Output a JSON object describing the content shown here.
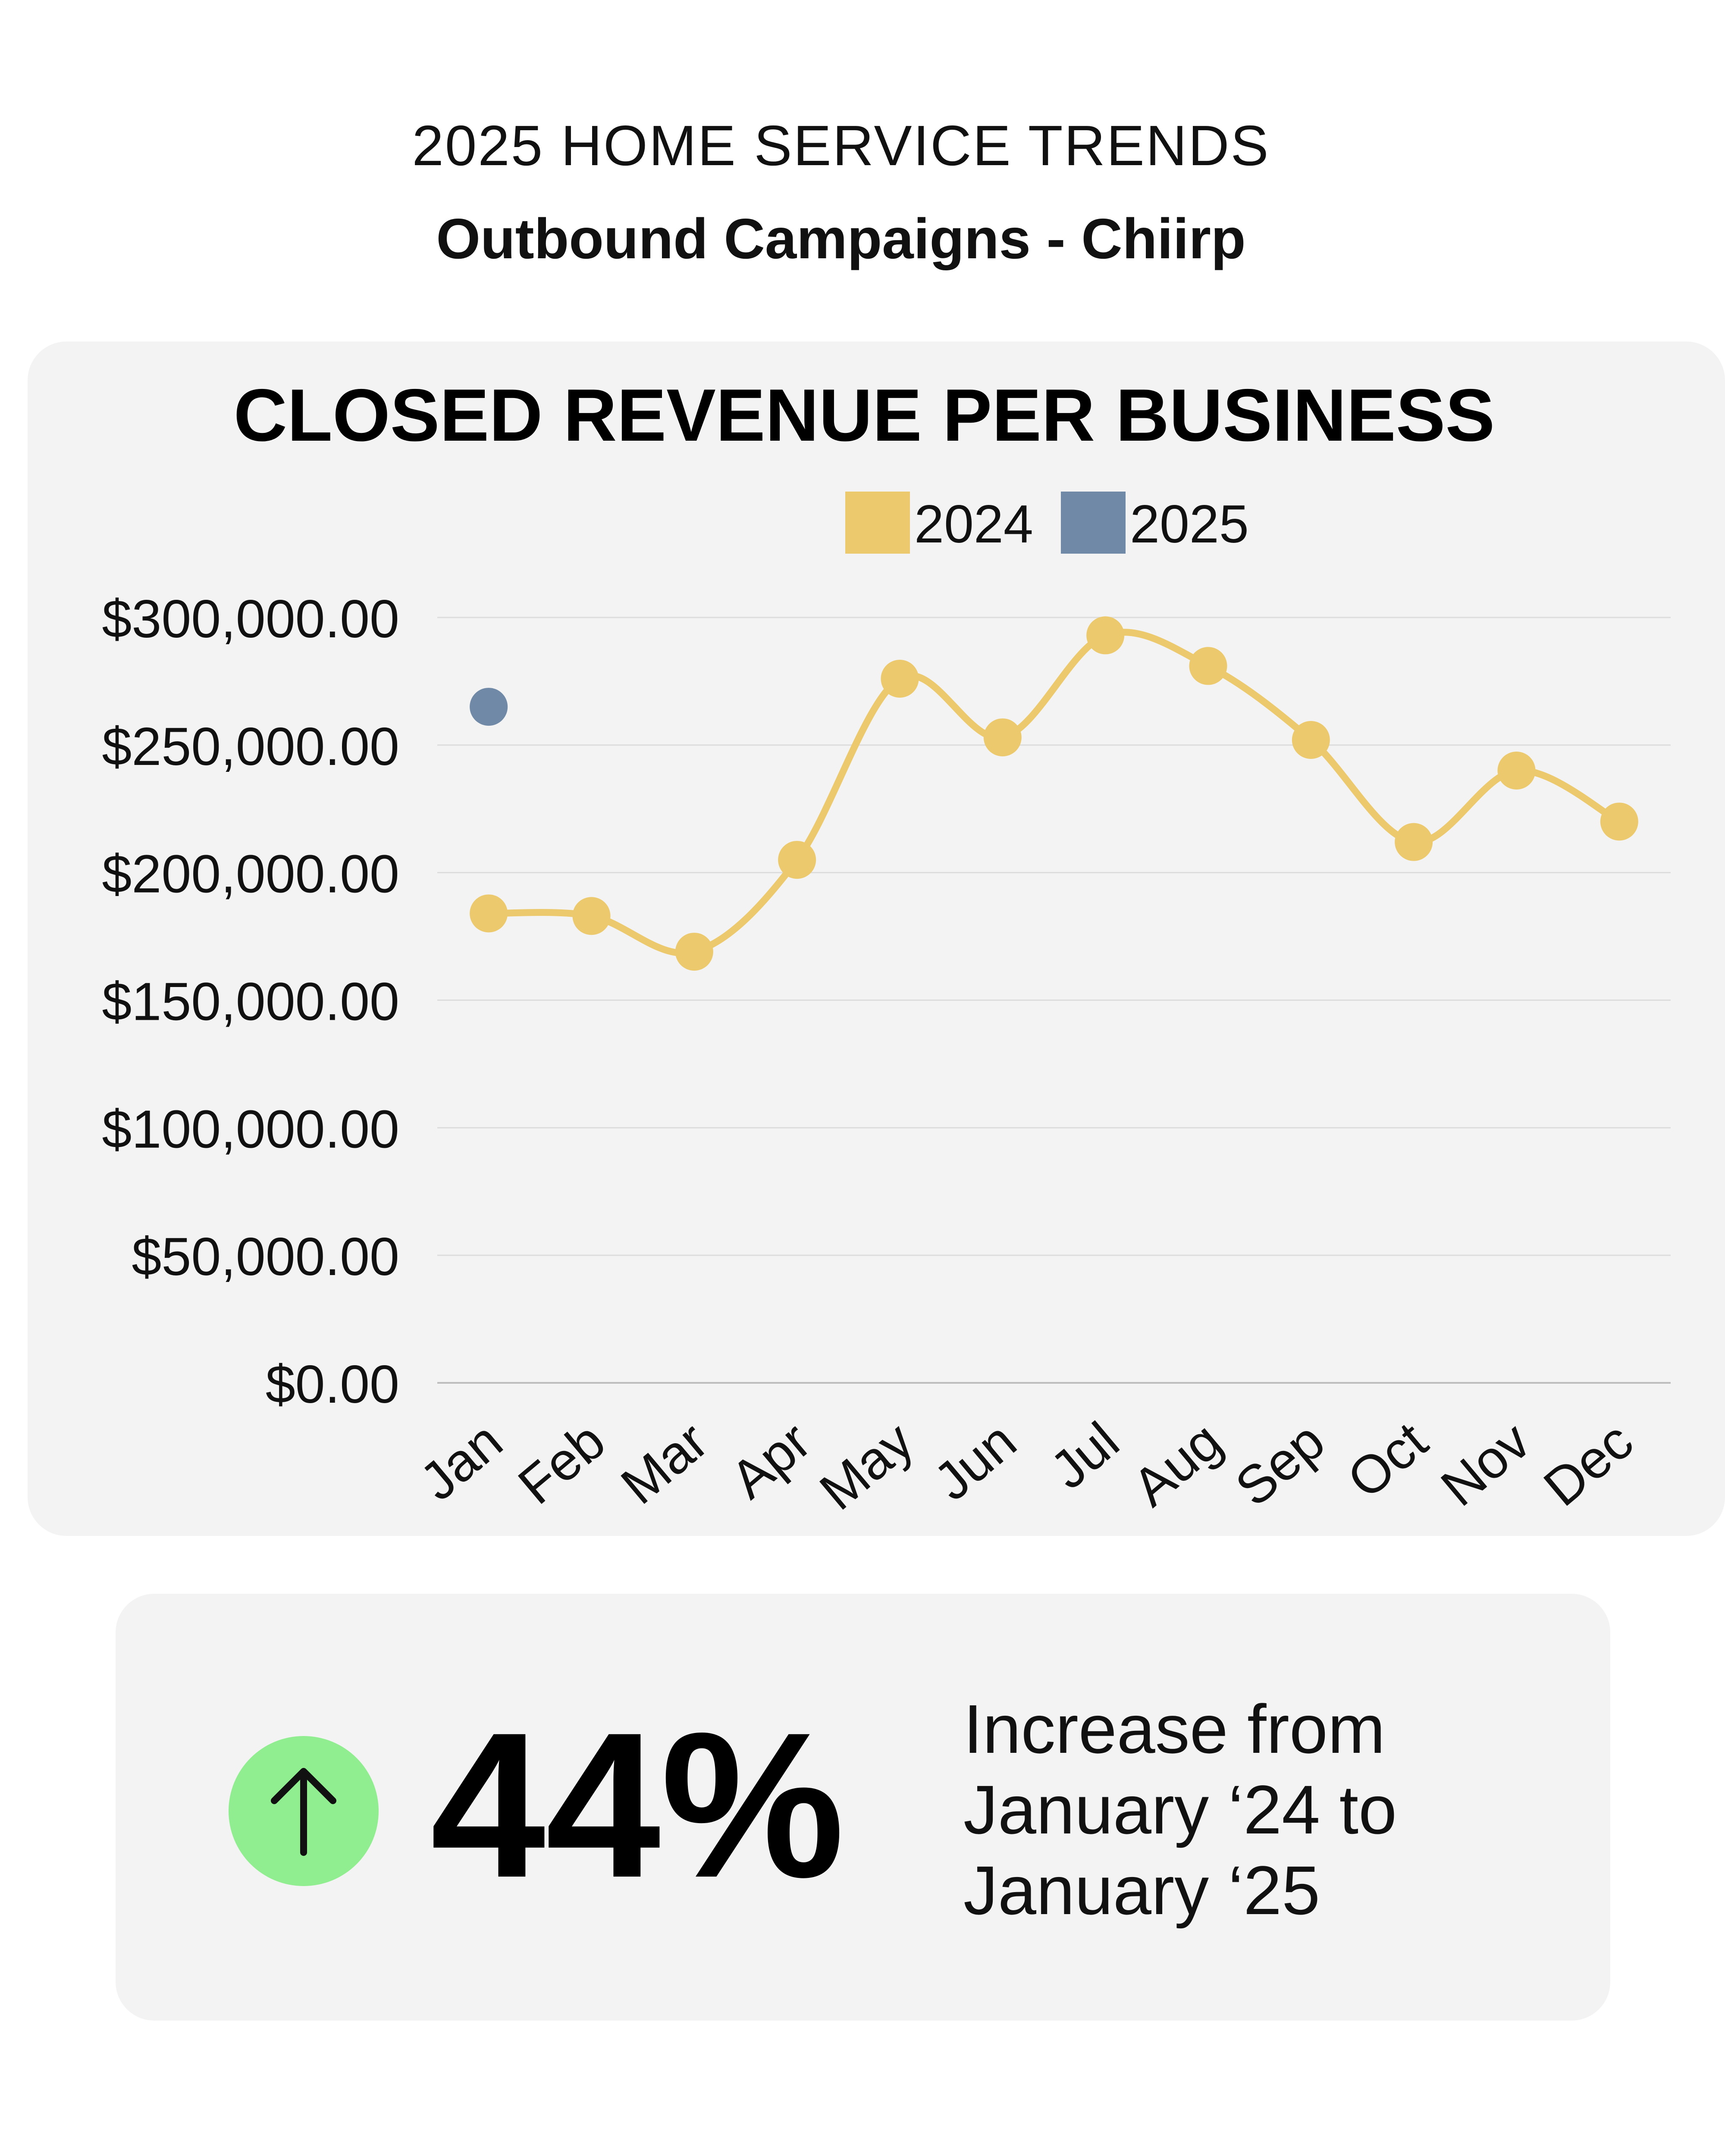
{
  "header": {
    "kicker": "2025 HOME SERVICE TRENDS",
    "subtitle": "Outbound Campaigns - Chiirp"
  },
  "colors": {
    "series_2024": "#ebc96c",
    "series_2025": "#6f89a6",
    "card_bg": "#f3f3f3",
    "badge_green": "#90ee90"
  },
  "chart_data": {
    "type": "line",
    "title": "CLOSED REVENUE PER BUSINESS",
    "xlabel": "",
    "ylabel": "",
    "categories": [
      "Jan",
      "Feb",
      "Mar",
      "Apr",
      "May",
      "Jun",
      "Jul",
      "Aug",
      "Sep",
      "Oct",
      "Nov",
      "Dec"
    ],
    "series": [
      {
        "name": "2024",
        "color": "#ebc96c",
        "values": [
          184000,
          183000,
          169000,
          205000,
          276000,
          253000,
          293000,
          281000,
          252000,
          212000,
          240000,
          220000
        ]
      },
      {
        "name": "2025",
        "color": "#6f89a6",
        "values": [
          265000,
          null,
          null,
          null,
          null,
          null,
          null,
          null,
          null,
          null,
          null,
          null
        ]
      }
    ],
    "ylim": [
      0,
      300000
    ],
    "yticks": [
      0,
      50000,
      100000,
      150000,
      200000,
      250000,
      300000
    ],
    "ytick_labels": [
      "$0.00",
      "$50,000.00",
      "$100,000.00",
      "$150,000.00",
      "$200,000.00",
      "$250,000.00",
      "$300,000.00"
    ],
    "grid": true,
    "legend": "top-center",
    "smooth": true
  },
  "stat": {
    "value": "44%",
    "caption_lines": [
      "Increase from",
      "January ‘24 to",
      "January ‘25"
    ],
    "icon": "arrow-up-icon"
  }
}
